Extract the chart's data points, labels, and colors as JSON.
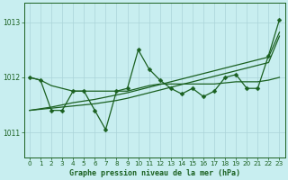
{
  "title": "Graphe pression niveau de la mer (hPa)",
  "bg_color": "#c8eef0",
  "grid_color": "#aad4d8",
  "line_color": "#1a6020",
  "xlim": [
    -0.5,
    23.5
  ],
  "ylim": [
    1010.55,
    1013.35
  ],
  "yticks": [
    1011,
    1012,
    1013
  ],
  "xticks": [
    0,
    1,
    2,
    3,
    4,
    5,
    6,
    7,
    8,
    9,
    10,
    11,
    12,
    13,
    14,
    15,
    16,
    17,
    18,
    19,
    20,
    21,
    22,
    23
  ],
  "series_main": [
    1012.0,
    1011.95,
    1011.4,
    1011.4,
    1011.75,
    1011.75,
    1011.4,
    1011.05,
    1011.75,
    1011.8,
    1012.5,
    1012.15,
    1011.95,
    1011.8,
    1011.7,
    1011.8,
    1011.65,
    1011.75,
    1012.0,
    1012.05,
    1011.8,
    1011.8,
    1012.4,
    1013.05
  ],
  "series_flat": [
    1012.0,
    1011.95,
    1011.85,
    1011.8,
    1011.75,
    1011.75,
    1011.75,
    1011.75,
    1011.75,
    1011.75,
    1011.8,
    1011.85,
    1011.88,
    1011.88,
    1011.88,
    1011.88,
    1011.88,
    1011.88,
    1011.9,
    1011.92,
    1011.92,
    1011.92,
    1011.95,
    1012.0
  ],
  "series_trend1": [
    1011.4,
    1011.42,
    1011.44,
    1011.46,
    1011.48,
    1011.5,
    1011.52,
    1011.55,
    1011.58,
    1011.62,
    1011.67,
    1011.72,
    1011.77,
    1011.82,
    1011.87,
    1011.92,
    1011.97,
    1012.02,
    1012.07,
    1012.12,
    1012.17,
    1012.22,
    1012.27,
    1012.75
  ],
  "series_trend2": [
    1011.4,
    1011.43,
    1011.46,
    1011.5,
    1011.54,
    1011.57,
    1011.6,
    1011.64,
    1011.68,
    1011.72,
    1011.77,
    1011.82,
    1011.87,
    1011.92,
    1011.97,
    1012.02,
    1012.07,
    1012.12,
    1012.17,
    1012.22,
    1012.27,
    1012.32,
    1012.37,
    1012.82
  ]
}
